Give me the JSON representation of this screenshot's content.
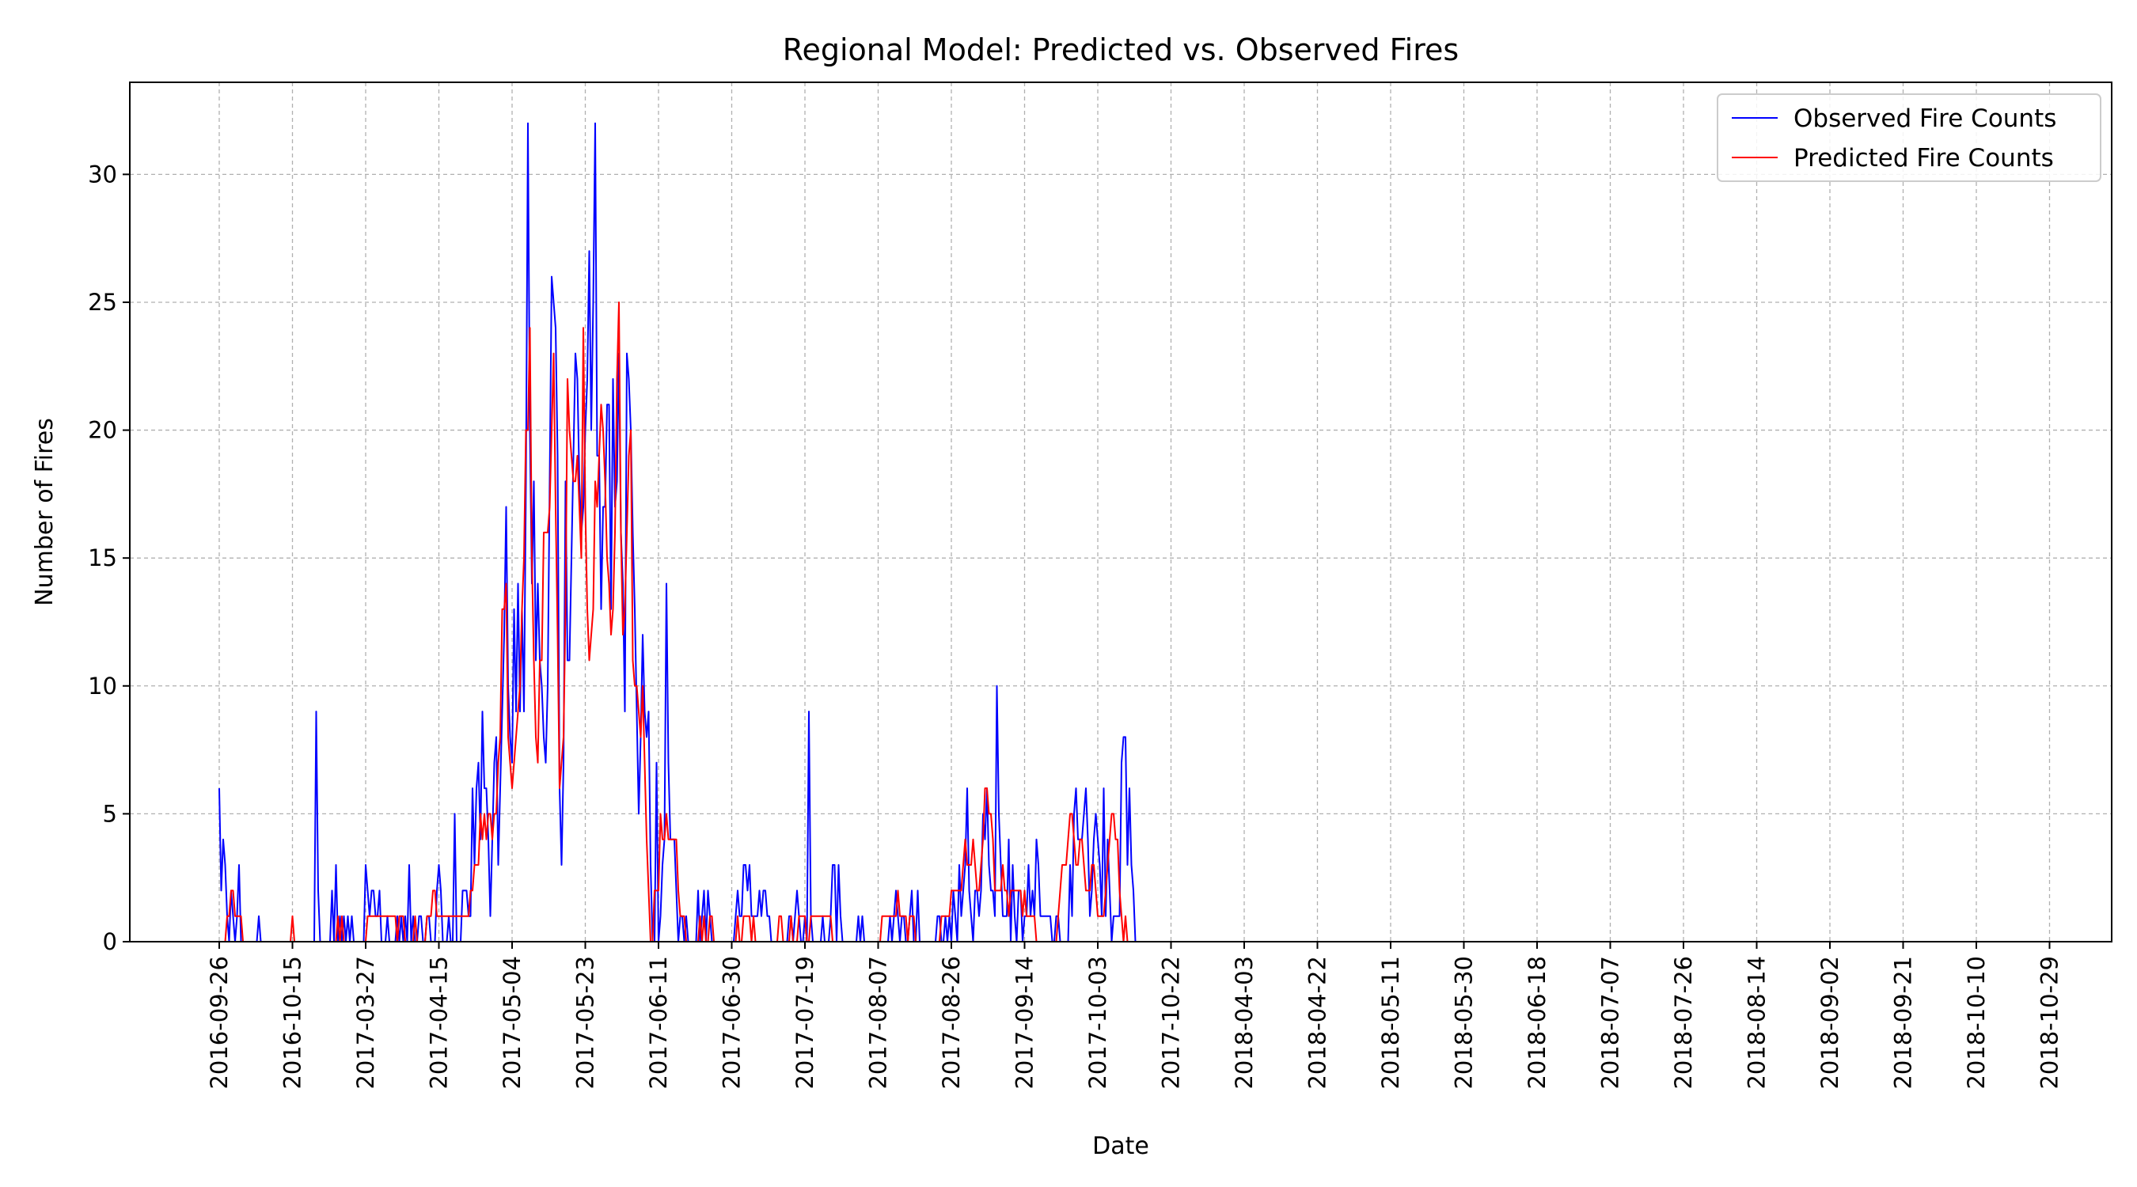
{
  "chart_data": {
    "type": "line",
    "title": "Regional Model: Predicted vs. Observed Fires",
    "xlabel": "Date",
    "ylabel": "Number of Fires",
    "ylim": [
      0,
      33.6
    ],
    "yticks": [
      0,
      5,
      10,
      15,
      20,
      25,
      30
    ],
    "xtick_labels": [
      "2016-09-26",
      "2016-10-15",
      "2017-03-27",
      "2017-04-15",
      "2017-05-04",
      "2017-05-23",
      "2017-06-11",
      "2017-06-30",
      "2017-07-19",
      "2017-08-07",
      "2017-08-26",
      "2017-09-14",
      "2017-10-03",
      "2017-10-22",
      "2018-04-03",
      "2018-04-22",
      "2018-05-11",
      "2018-05-30",
      "2018-06-18",
      "2018-07-07",
      "2018-07-26",
      "2018-08-14",
      "2018-09-02",
      "2018-09-21",
      "2018-10-10",
      "2018-10-29"
    ],
    "grid": true,
    "legend_position": "top-right",
    "series": [
      {
        "name": "Observed Fire Counts",
        "color": "#0000ff",
        "values": [
          6,
          2,
          4,
          3,
          1,
          0,
          2,
          1,
          0,
          1,
          3,
          0,
          0,
          0,
          0,
          0,
          0,
          0,
          0,
          0,
          1,
          0,
          0,
          0,
          0,
          0,
          0,
          0,
          0,
          0,
          0,
          0,
          0,
          0,
          0,
          0,
          0,
          0,
          0,
          0,
          0,
          0,
          0,
          0,
          0,
          0,
          0,
          0,
          0,
          9,
          2,
          0,
          0,
          0,
          0,
          0,
          0,
          2,
          0,
          3,
          0,
          1,
          0,
          1,
          0,
          1,
          0,
          1,
          0,
          0,
          0,
          0,
          0,
          0,
          3,
          2,
          1,
          2,
          2,
          1,
          1,
          2,
          0,
          0,
          0,
          1,
          0,
          0,
          0,
          0,
          1,
          0,
          1,
          0,
          1,
          0,
          3,
          0,
          1,
          0,
          0,
          1,
          1,
          0,
          0,
          1,
          1,
          0,
          0,
          0,
          2,
          3,
          2,
          0,
          0,
          0,
          1,
          0,
          0,
          5,
          0,
          0,
          0,
          2,
          2,
          2,
          1,
          1,
          6,
          3,
          6,
          7,
          4,
          9,
          6,
          6,
          4,
          1,
          4,
          7,
          8,
          3,
          6,
          9,
          12,
          17,
          10,
          8,
          7,
          13,
          9,
          14,
          9,
          13,
          9,
          18,
          32,
          20,
          14,
          18,
          11,
          14,
          11,
          10,
          8,
          7,
          10,
          18,
          26,
          25,
          24,
          19,
          6,
          3,
          7,
          18,
          11,
          11,
          15,
          19,
          23,
          22,
          18,
          16,
          17,
          20,
          22,
          27,
          20,
          25,
          32,
          19,
          19,
          13,
          17,
          17,
          21,
          21,
          13,
          22,
          17,
          18,
          23,
          16,
          14,
          9,
          23,
          22,
          20,
          16,
          13,
          9,
          5,
          8,
          12,
          9,
          8,
          9,
          3,
          0,
          0,
          7,
          0,
          1,
          3,
          4,
          14,
          7,
          4,
          4,
          4,
          2,
          0,
          1,
          1,
          0,
          1,
          0,
          0,
          0,
          0,
          0,
          2,
          0,
          1,
          2,
          0,
          2,
          1,
          0,
          0,
          0,
          0,
          0,
          0,
          0,
          0,
          0,
          0,
          0,
          0,
          1,
          2,
          1,
          1,
          3,
          3,
          2,
          3,
          1,
          1,
          1,
          1,
          2,
          1,
          2,
          2,
          1,
          1,
          0,
          0,
          0,
          0,
          0,
          0,
          0,
          0,
          0,
          1,
          1,
          0,
          1,
          2,
          1,
          0,
          0,
          1,
          0,
          9,
          1,
          0,
          0,
          0,
          0,
          0,
          1,
          0,
          0,
          0,
          1,
          3,
          3,
          0,
          3,
          1,
          0,
          0,
          0,
          0,
          0,
          0,
          0,
          0,
          1,
          0,
          1,
          0,
          0,
          0,
          0,
          0,
          0,
          0,
          0,
          0,
          0,
          0,
          0,
          0,
          1,
          0,
          1,
          2,
          1,
          0,
          1,
          1,
          0,
          0,
          1,
          2,
          0,
          0,
          2,
          0,
          0,
          0,
          0,
          0,
          0,
          0,
          0,
          0,
          1,
          1,
          0,
          0,
          1,
          0,
          1,
          0,
          2,
          1,
          0,
          3,
          1,
          2,
          3,
          6,
          2,
          1,
          0,
          2,
          2,
          1,
          2,
          5,
          4,
          6,
          3,
          2,
          2,
          1,
          10,
          5,
          3,
          1,
          1,
          1,
          4,
          0,
          3,
          1,
          0,
          2,
          2,
          0,
          1,
          1,
          3,
          1,
          2,
          1,
          4,
          3,
          1,
          1,
          1,
          1,
          1,
          1,
          0,
          0,
          1,
          1,
          0,
          0,
          0,
          0,
          0,
          3,
          1,
          5,
          6,
          4,
          4,
          4,
          5,
          6,
          4,
          1,
          2,
          4,
          5,
          4,
          3,
          1,
          6,
          1,
          4,
          2,
          0,
          1,
          1,
          1,
          1,
          7,
          8,
          8,
          3,
          6,
          3,
          2,
          0,
          0,
          0,
          0,
          0,
          0,
          0,
          0,
          0,
          0,
          0,
          0,
          0,
          0,
          0,
          0,
          0,
          0,
          0,
          0,
          0,
          0,
          0,
          0,
          0,
          0,
          0,
          0,
          0,
          0,
          0,
          0,
          0,
          0,
          0,
          0,
          0,
          0,
          0,
          0,
          0,
          0,
          0,
          0,
          0,
          0,
          0,
          0,
          0,
          0,
          0,
          0,
          0,
          0,
          0,
          0
        ]
      },
      {
        "name": "Predicted Fire Counts",
        "color": "#ff0000",
        "values": [
          0,
          0,
          0,
          0,
          1,
          1,
          2,
          2,
          1,
          1,
          1,
          1,
          0,
          0,
          0,
          0,
          0,
          0,
          0,
          0,
          0,
          0,
          0,
          0,
          0,
          0,
          0,
          0,
          0,
          0,
          0,
          0,
          0,
          0,
          0,
          0,
          0,
          1,
          0,
          0,
          0,
          0,
          0,
          0,
          0,
          0,
          0,
          0,
          0,
          0,
          0,
          0,
          0,
          0,
          0,
          0,
          0,
          0,
          0,
          0,
          1,
          0,
          1,
          0,
          0,
          0,
          0,
          0,
          0,
          0,
          0,
          0,
          0,
          0,
          0,
          1,
          1,
          1,
          1,
          1,
          1,
          1,
          1,
          1,
          1,
          1,
          1,
          1,
          1,
          1,
          0,
          1,
          1,
          1,
          0,
          0,
          0,
          0,
          0,
          1,
          0,
          0,
          0,
          0,
          0,
          1,
          1,
          1,
          2,
          2,
          1,
          1,
          1,
          1,
          1,
          1,
          1,
          1,
          1,
          1,
          1,
          1,
          1,
          1,
          1,
          1,
          1,
          2,
          2,
          3,
          3,
          3,
          5,
          4,
          5,
          4,
          5,
          5,
          4,
          5,
          5,
          7,
          8,
          13,
          13,
          14,
          8,
          7,
          6,
          7,
          8,
          9,
          10,
          13,
          15,
          20,
          20,
          24,
          15,
          11,
          8,
          7,
          11,
          11,
          16,
          16,
          16,
          17,
          20,
          23,
          17,
          12,
          6,
          7,
          8,
          13,
          22,
          20,
          19,
          18,
          18,
          19,
          17,
          15,
          24,
          17,
          13,
          11,
          12,
          13,
          18,
          17,
          19,
          21,
          20,
          18,
          15,
          14,
          12,
          13,
          16,
          22,
          25,
          16,
          12,
          13,
          16,
          19,
          20,
          11,
          10,
          10,
          9,
          8,
          10,
          7,
          4,
          2,
          0,
          0,
          2,
          2,
          2,
          5,
          4,
          4,
          5,
          4,
          4,
          4,
          4,
          4,
          2,
          1,
          1,
          1,
          0,
          0,
          0,
          0,
          0,
          0,
          0,
          1,
          0,
          1,
          0,
          0,
          1,
          1,
          0,
          0,
          0,
          0,
          0,
          0,
          0,
          0,
          0,
          0,
          0,
          0,
          1,
          0,
          0,
          1,
          1,
          1,
          1,
          0,
          1,
          0,
          0,
          0,
          0,
          0,
          0,
          0,
          0,
          0,
          0,
          0,
          0,
          1,
          1,
          0,
          0,
          0,
          0,
          1,
          0,
          0,
          0,
          1,
          1,
          1,
          1,
          0,
          0,
          1,
          1,
          1,
          1,
          1,
          1,
          1,
          1,
          1,
          1,
          1,
          0,
          0,
          0,
          0,
          0,
          0,
          0,
          0,
          0,
          0,
          0,
          0,
          0,
          0,
          0,
          0,
          0,
          0,
          0,
          0,
          0,
          0,
          0,
          0,
          0,
          1,
          1,
          1,
          1,
          1,
          1,
          1,
          1,
          2,
          1,
          1,
          1,
          1,
          0,
          1,
          1,
          1,
          0,
          0,
          0,
          0,
          0,
          0,
          0,
          0,
          0,
          0,
          0,
          0,
          0,
          1,
          1,
          1,
          1,
          1,
          2,
          2,
          2,
          2,
          2,
          2,
          3,
          4,
          3,
          3,
          3,
          4,
          3,
          2,
          2,
          3,
          4,
          6,
          6,
          5,
          5,
          4,
          2,
          2,
          2,
          2,
          3,
          2,
          2,
          1,
          2,
          2,
          2,
          2,
          2,
          2,
          1,
          2,
          1,
          1,
          1,
          1,
          1,
          0,
          0,
          0,
          0,
          0,
          0,
          0,
          0,
          0,
          0,
          0,
          1,
          2,
          3,
          3,
          3,
          4,
          5,
          5,
          4,
          3,
          3,
          4,
          4,
          3,
          2,
          2,
          2,
          3,
          3,
          2,
          1,
          1,
          1,
          1,
          2,
          3,
          4,
          5,
          5,
          4,
          4,
          2,
          1,
          0,
          1,
          0,
          0,
          0,
          0,
          0,
          0,
          0,
          0,
          0,
          0,
          0,
          0,
          0,
          0,
          0,
          0,
          0,
          0,
          0,
          0,
          0,
          0,
          0,
          0,
          0,
          0,
          0,
          0,
          0,
          0,
          0,
          0,
          0,
          0,
          0,
          0,
          0,
          0,
          0,
          0,
          0,
          0,
          0,
          0,
          0,
          0,
          0,
          0
        ]
      }
    ]
  }
}
